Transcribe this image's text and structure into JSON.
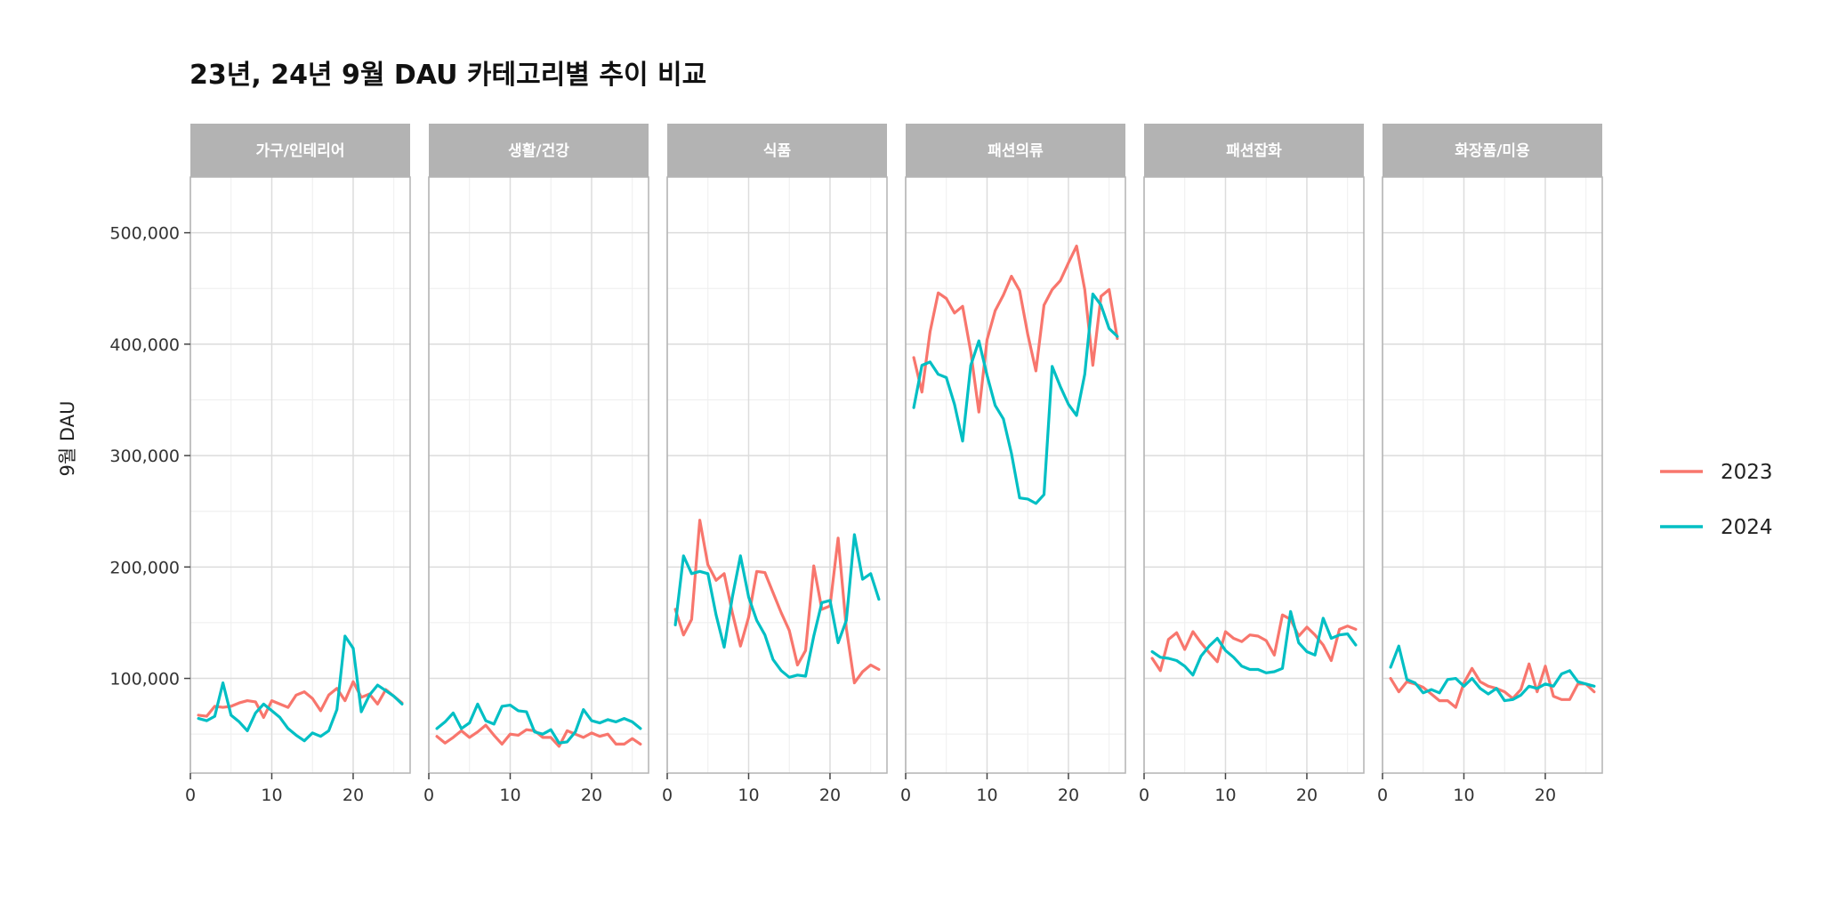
{
  "chart_data": {
    "type": "line",
    "title": "23년, 24년 9월 DAU 카테고리별 추이 비교",
    "xlabel": "",
    "ylabel": "9월 DAU",
    "xlim": [
      0,
      27
    ],
    "ylim": [
      15000,
      550000
    ],
    "x_ticks": [
      0,
      10,
      20
    ],
    "x_tick_labels": [
      "0",
      "10",
      "20"
    ],
    "y_ticks": [
      100000,
      200000,
      300000,
      400000,
      500000
    ],
    "y_tick_labels": [
      "100,000",
      "200,000",
      "300,000",
      "400,000",
      "500,000"
    ],
    "grid": true,
    "legend_position": "right",
    "series_meta": [
      {
        "name": "2023",
        "color": "#F8766D"
      },
      {
        "name": "2024",
        "color": "#00BFC4"
      }
    ],
    "x": [
      1,
      2,
      3,
      4,
      5,
      6,
      7,
      8,
      9,
      10,
      11,
      12,
      13,
      14,
      15,
      16,
      17,
      18,
      19,
      20,
      21,
      22,
      23,
      24,
      25,
      26
    ],
    "facets": [
      {
        "name": "가구/인테리어",
        "series": [
          {
            "name": "2023",
            "values": [
              67000,
              66000,
              75000,
              74000,
              75000,
              78000,
              80000,
              79000,
              65000,
              80000,
              77000,
              74000,
              85000,
              88000,
              82000,
              71000,
              85000,
              91000,
              80000,
              97000,
              83000,
              86000,
              77000,
              90000,
              84000,
              78000
            ]
          },
          {
            "name": "2024",
            "values": [
              64000,
              62000,
              66000,
              96000,
              67000,
              61000,
              53000,
              69000,
              77000,
              71000,
              65000,
              55000,
              49000,
              44000,
              51000,
              48000,
              53000,
              72000,
              138000,
              127000,
              70000,
              85000,
              94000,
              89000,
              84000,
              77000
            ]
          }
        ]
      },
      {
        "name": "생활/건강",
        "series": [
          {
            "name": "2023",
            "values": [
              48000,
              42000,
              47000,
              53000,
              47000,
              52000,
              58000,
              49000,
              41000,
              50000,
              49000,
              54000,
              53000,
              47000,
              47000,
              39000,
              53000,
              50000,
              47000,
              51000,
              48000,
              50000,
              41000,
              41000,
              46000,
              41000
            ]
          },
          {
            "name": "2024",
            "values": [
              55000,
              61000,
              69000,
              55000,
              60000,
              77000,
              62000,
              59000,
              75000,
              76000,
              71000,
              70000,
              52000,
              50000,
              54000,
              42000,
              43000,
              52000,
              72000,
              62000,
              60000,
              63000,
              61000,
              64000,
              61000,
              55000
            ]
          }
        ]
      },
      {
        "name": "식품",
        "series": [
          {
            "name": "2023",
            "values": [
              162000,
              139000,
              153000,
              242000,
              202000,
              188000,
              194000,
              159000,
              129000,
              155000,
              196000,
              195000,
              177000,
              159000,
              143000,
              112000,
              125000,
              201000,
              162000,
              165000,
              226000,
              145000,
              96000,
              106000,
              112000,
              108000
            ]
          },
          {
            "name": "2024",
            "values": [
              148000,
              210000,
              194000,
              196000,
              194000,
              157000,
              128000,
              173000,
              210000,
              173000,
              152000,
              139000,
              117000,
              107000,
              101000,
              103000,
              102000,
              138000,
              168000,
              170000,
              132000,
              152000,
              229000,
              189000,
              194000,
              171000
            ]
          }
        ]
      },
      {
        "name": "패션의류",
        "series": [
          {
            "name": "2023",
            "values": [
              388000,
              357000,
              411000,
              446000,
              441000,
              428000,
              434000,
              393000,
              339000,
              404000,
              430000,
              444000,
              461000,
              448000,
              409000,
              376000,
              435000,
              449000,
              457000,
              473000,
              488000,
              449000,
              381000,
              443000,
              449000,
              405000
            ]
          },
          {
            "name": "2024",
            "values": [
              343000,
              381000,
              384000,
              373000,
              370000,
              346000,
              313000,
              381000,
              403000,
              372000,
              345000,
              333000,
              302000,
              262000,
              261000,
              257000,
              265000,
              380000,
              362000,
              346000,
              336000,
              373000,
              445000,
              435000,
              414000,
              407000
            ]
          }
        ]
      },
      {
        "name": "패션잡화",
        "series": [
          {
            "name": "2023",
            "values": [
              118000,
              107000,
              135000,
              141000,
              126000,
              142000,
              132000,
              123000,
              115000,
              142000,
              136000,
              133000,
              139000,
              138000,
              134000,
              121000,
              157000,
              153000,
              138000,
              146000,
              139000,
              130000,
              116000,
              144000,
              147000,
              144000
            ]
          },
          {
            "name": "2024",
            "values": [
              124000,
              119000,
              118000,
              116000,
              111000,
              103000,
              120000,
              129000,
              136000,
              125000,
              119000,
              111000,
              108000,
              108000,
              105000,
              106000,
              109000,
              160000,
              132000,
              124000,
              121000,
              154000,
              136000,
              139000,
              140000,
              130000
            ]
          }
        ]
      },
      {
        "name": "화장품/미용",
        "series": [
          {
            "name": "2023",
            "values": [
              100000,
              88000,
              97000,
              95000,
              92000,
              86000,
              80000,
              80000,
              74000,
              96000,
              109000,
              97000,
              93000,
              91000,
              88000,
              82000,
              90000,
              113000,
              88000,
              111000,
              84000,
              81000,
              81000,
              95000,
              95000,
              88000
            ]
          },
          {
            "name": "2024",
            "values": [
              110000,
              129000,
              99000,
              96000,
              87000,
              90000,
              87000,
              99000,
              100000,
              93000,
              100000,
              91000,
              86000,
              91000,
              80000,
              81000,
              85000,
              93000,
              91000,
              95000,
              93000,
              104000,
              107000,
              97000,
              95000,
              93000
            ]
          }
        ]
      }
    ]
  }
}
